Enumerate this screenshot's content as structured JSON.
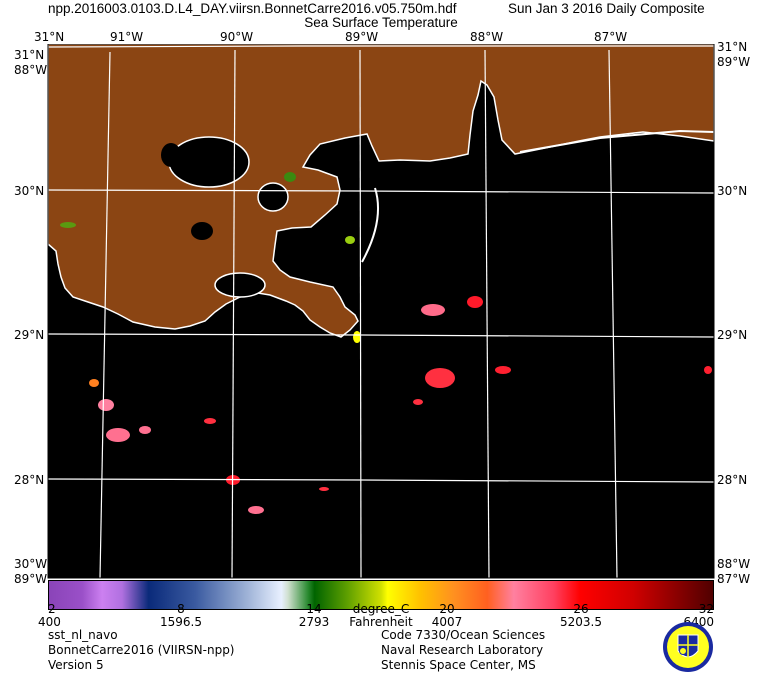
{
  "header": {
    "filename": "npp.2016003.0103.D.L4_DAY.viirsn.BonnetCarre2016.v05.750m.hdf",
    "date": "Sun Jan  3 2016 Daily Composite",
    "product": "Sea Surface Temperature"
  },
  "map": {
    "top_lon_labels": [
      "91°W",
      "90°W",
      "89°W",
      "88°W",
      "87°W"
    ],
    "lat_labels": [
      "31°N",
      "30°N",
      "29°N",
      "28°N"
    ],
    "corner_labels": {
      "top_left_a": "31°N",
      "top_left_b": "88°W",
      "top_right_a": "31°N",
      "top_right_b": "89°W",
      "bottom_left_a": "30°W",
      "bottom_left_b": "89°W",
      "bottom_right_a": "88°W",
      "bottom_right_b": "87°W"
    },
    "colors": {
      "land": "#8B4513",
      "water_nodata": "#000000",
      "coast": "#ffffff",
      "grid": "#ffffff"
    }
  },
  "colorbar": {
    "celsius_ticks": [
      "2",
      "8",
      "14",
      "20",
      "26",
      "32"
    ],
    "fahrenheit_ticks": [
      "400",
      "1596.5",
      "2793",
      "4007",
      "5203.5",
      "6400"
    ],
    "unit_c": "degree_C",
    "unit_f": "Fahrenheit",
    "range_c": [
      2,
      32
    ]
  },
  "footer": {
    "left": [
      "sst_nl_navo",
      "BonnetCarre2016 (VIIRSN-npp)",
      "Version 5"
    ],
    "right": [
      "Code 7330/Ocean Sciences",
      "Naval Research Laboratory",
      "Stennis Space Center, MS"
    ],
    "logo": "Naval Research Laboratory seal"
  }
}
